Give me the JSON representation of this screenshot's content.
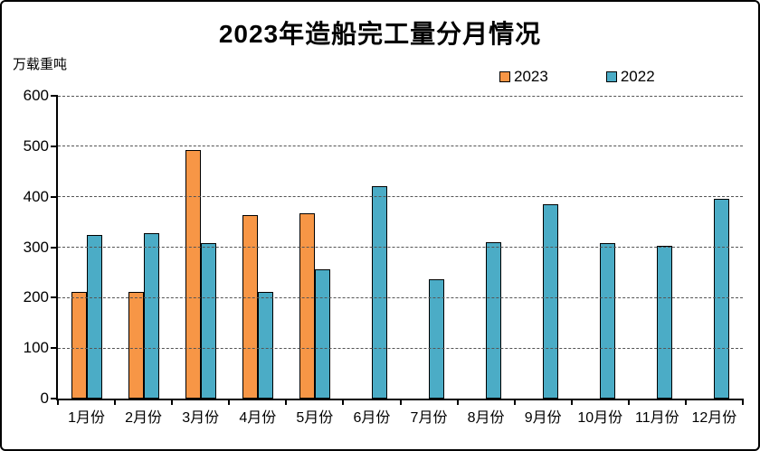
{
  "chart_data": {
    "type": "bar",
    "title": "2023年造船完工量分月情况",
    "ylabel": "万载重吨",
    "categories": [
      "1月份",
      "2月份",
      "3月份",
      "4月份",
      "5月份",
      "6月份",
      "7月份",
      "8月份",
      "9月份",
      "10月份",
      "11月份",
      "12月份"
    ],
    "series": [
      {
        "name": "2023",
        "color": "#F79646",
        "values": [
          212,
          212,
          493,
          363,
          367,
          null,
          null,
          null,
          null,
          null,
          null,
          null
        ]
      },
      {
        "name": "2022",
        "color": "#4BACC6",
        "values": [
          325,
          327,
          308,
          211,
          256,
          421,
          236,
          309,
          385,
          308,
          303,
          396
        ]
      }
    ],
    "ylim": [
      0,
      600
    ],
    "yticks": [
      0,
      100,
      200,
      300,
      400,
      500,
      600
    ],
    "grid": "horizontal-dashed",
    "legend_position": "top-right",
    "bar_outline_color": "#000000",
    "axis_color": "#000000",
    "background_color": "#FFFFFF"
  }
}
